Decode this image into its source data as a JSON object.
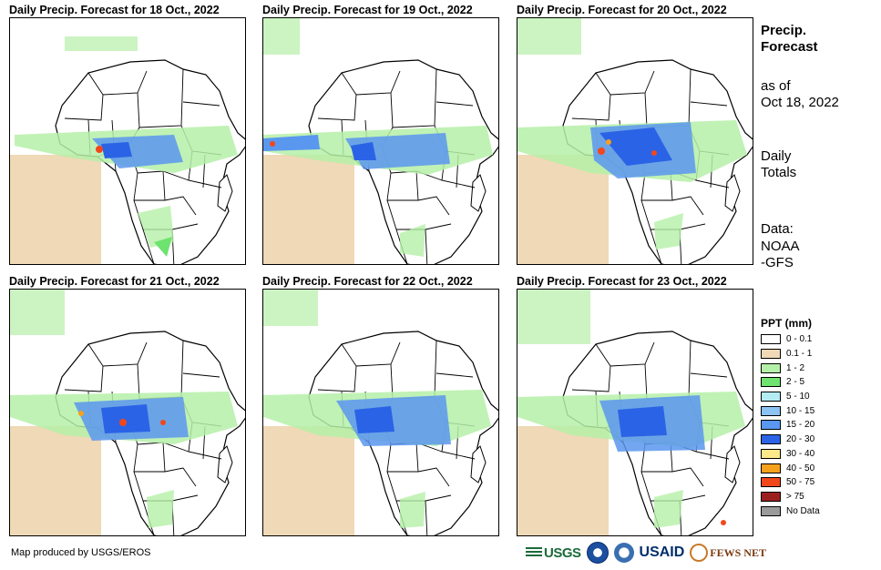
{
  "panels": [
    {
      "title": "Daily Precip. Forecast for 18 Oct., 2022"
    },
    {
      "title": "Daily Precip. Forecast for 19 Oct., 2022"
    },
    {
      "title": "Daily Precip. Forecast for 20 Oct., 2022"
    },
    {
      "title": "Daily Precip. Forecast for 21 Oct., 2022"
    },
    {
      "title": "Daily Precip. Forecast for 22 Oct., 2022"
    },
    {
      "title": "Daily Precip. Forecast for 23 Oct., 2022"
    }
  ],
  "side": {
    "title": "Precip. Forecast",
    "as_of": "as of",
    "date": "Oct 18, 2022",
    "totals": "Daily Totals",
    "data_label": "Data:",
    "data_source": "NOAA-GFS"
  },
  "legend": {
    "title": "PPT (mm)",
    "items": [
      {
        "label": "0 - 0.1",
        "color": "#ffffff"
      },
      {
        "label": "0.1 - 1",
        "color": "#efd9b6"
      },
      {
        "label": "1 - 2",
        "color": "#b5f0a8"
      },
      {
        "label": "2 - 5",
        "color": "#6fe36f"
      },
      {
        "label": "5 - 10",
        "color": "#b4ecf4"
      },
      {
        "label": "10 - 15",
        "color": "#8cc3f3"
      },
      {
        "label": "15 - 20",
        "color": "#5a97ef"
      },
      {
        "label": "20 - 30",
        "color": "#2b63e6"
      },
      {
        "label": "30 - 40",
        "color": "#fbe98a"
      },
      {
        "label": "40 - 50",
        "color": "#f6a11b"
      },
      {
        "label": "50 - 75",
        "color": "#f2471b"
      },
      {
        "label": "> 75",
        "color": "#9c1f1f"
      },
      {
        "label": "No Data",
        "color": "#9a9a9a"
      }
    ]
  },
  "credit": "Map produced by USGS/EROS",
  "logos": {
    "usgs": "USGS",
    "usaid": "USAID",
    "fews": "FEWS NET"
  }
}
